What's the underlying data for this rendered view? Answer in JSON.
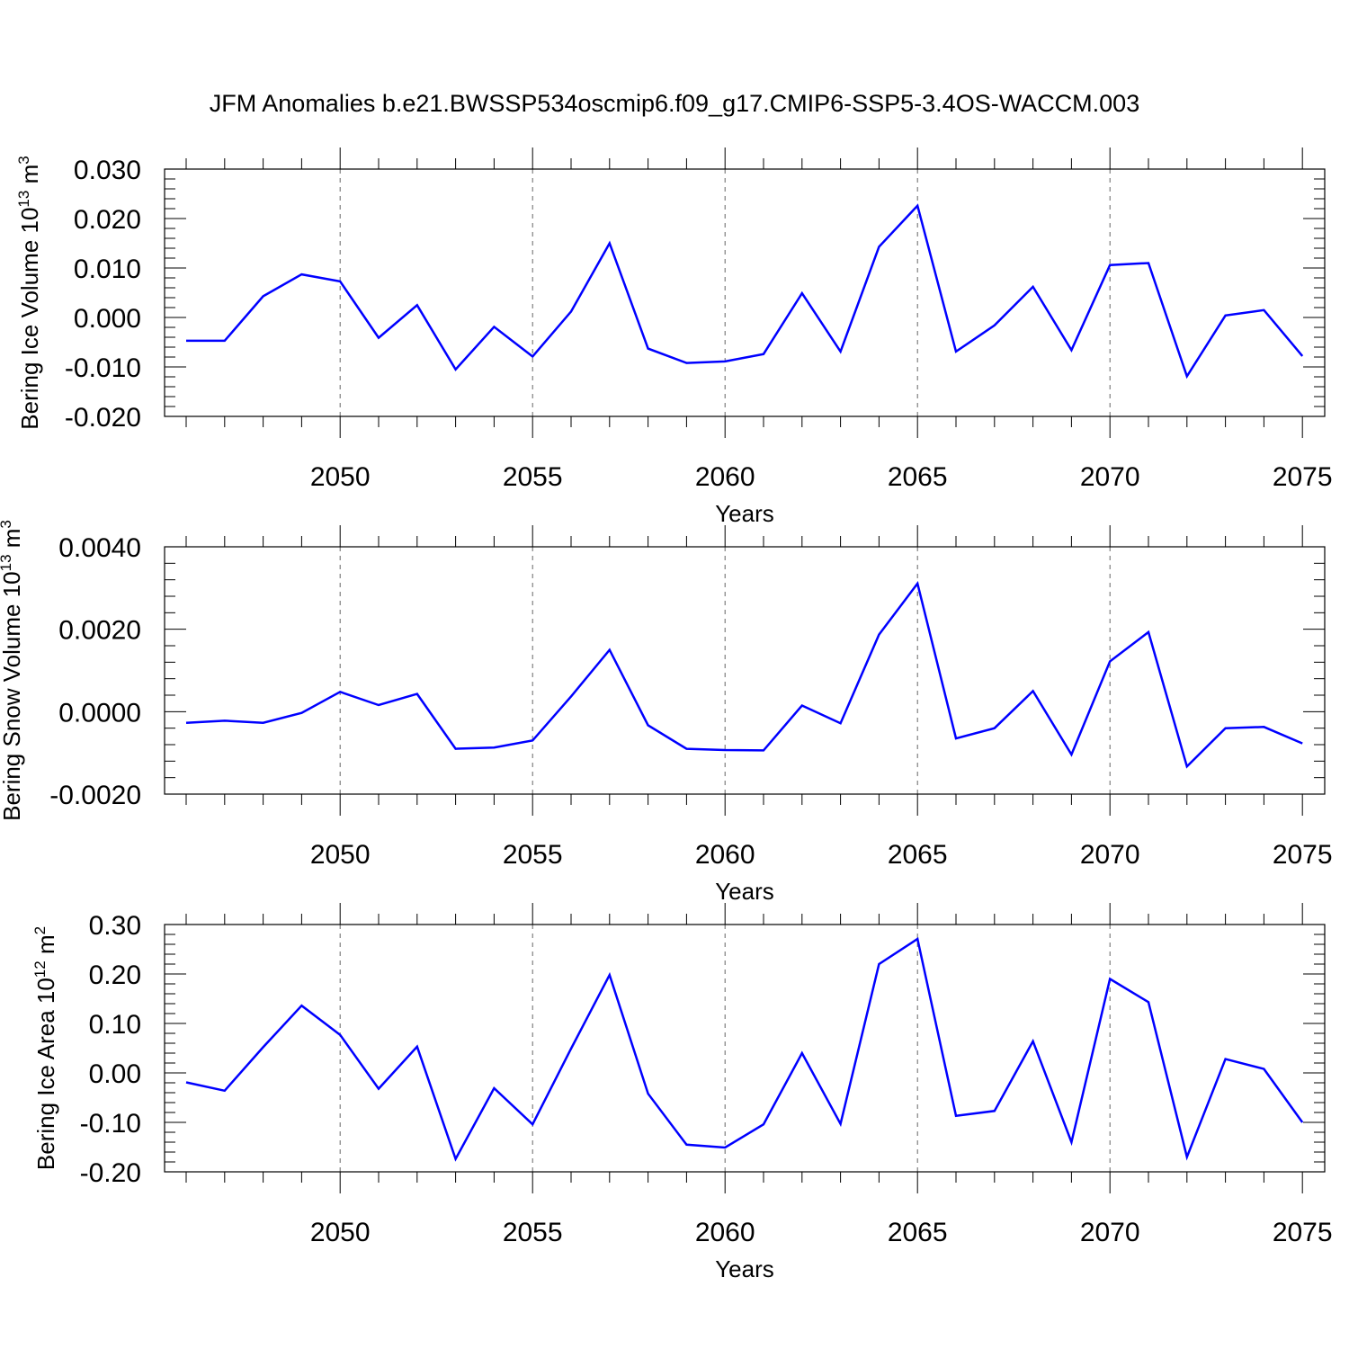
{
  "figure": {
    "title": "JFM Anomalies b.e21.BWSSP534oscmip6.f09_g17.CMIP6-SSP5-3.4OS-WACCM.003"
  },
  "chart_data": [
    {
      "type": "line",
      "title": "",
      "xlabel": "Years",
      "ylabel": "Bering Ice Volume 10",
      "ylabel_exp": "13",
      "ylabel_unit": " m",
      "ylabel_unit_exp": "3",
      "xlim": [
        2046,
        2075
      ],
      "ylim": [
        -0.02,
        0.03
      ],
      "x_ticks": [
        2050,
        2055,
        2060,
        2065,
        2070,
        2075
      ],
      "y_ticks": [
        -0.02,
        -0.01,
        0.0,
        0.01,
        0.02,
        0.03
      ],
      "y_tick_labels": [
        "-0.020",
        "-0.010",
        "0.000",
        "0.010",
        "0.020",
        "0.030"
      ],
      "grid": "vertical dashed at major x ticks",
      "series": [
        {
          "color": "#0000ff",
          "x": [
            2046,
            2047,
            2048,
            2049,
            2050,
            2051,
            2052,
            2053,
            2054,
            2055,
            2056,
            2057,
            2058,
            2059,
            2060,
            2061,
            2062,
            2063,
            2064,
            2065,
            2066,
            2067,
            2068,
            2069,
            2070,
            2071,
            2072,
            2073,
            2074,
            2075
          ],
          "y": [
            -0.0047,
            -0.0047,
            0.0043,
            0.0087,
            0.0073,
            -0.0041,
            0.0025,
            -0.0105,
            -0.0019,
            -0.0079,
            0.0012,
            0.015,
            -0.0063,
            -0.0092,
            -0.0089,
            -0.0074,
            0.0049,
            -0.0069,
            0.0143,
            0.0226,
            -0.0069,
            -0.0016,
            0.0062,
            -0.0066,
            0.0106,
            0.011,
            -0.0119,
            0.0004,
            0.0015,
            -0.0078
          ]
        }
      ]
    },
    {
      "type": "line",
      "title": "",
      "xlabel": "Years",
      "ylabel": "Bering Snow Volume 10",
      "ylabel_exp": "13",
      "ylabel_unit": " m",
      "ylabel_unit_exp": "3",
      "xlim": [
        2046,
        2075
      ],
      "ylim": [
        -0.002,
        0.004
      ],
      "x_ticks": [
        2050,
        2055,
        2060,
        2065,
        2070,
        2075
      ],
      "y_ticks": [
        -0.002,
        0.0,
        0.002,
        0.004
      ],
      "y_tick_labels": [
        "-0.0020",
        "0.0000",
        "0.0020",
        "0.0040"
      ],
      "grid": "vertical dashed at major x ticks",
      "series": [
        {
          "color": "#0000ff",
          "x": [
            2046,
            2047,
            2048,
            2049,
            2050,
            2051,
            2052,
            2053,
            2054,
            2055,
            2056,
            2057,
            2058,
            2059,
            2060,
            2061,
            2062,
            2063,
            2064,
            2065,
            2066,
            2067,
            2068,
            2069,
            2070,
            2071,
            2072,
            2073,
            2074,
            2075
          ],
          "y": [
            -0.00027,
            -0.00022,
            -0.00027,
            -3e-05,
            0.00048,
            0.00016,
            0.00043,
            -0.0009,
            -0.00087,
            -0.0007,
            0.00037,
            0.0015,
            -0.00033,
            -0.0009,
            -0.00093,
            -0.00094,
            0.00015,
            -0.00028,
            0.00187,
            0.00311,
            -0.00065,
            -0.0004,
            0.0005,
            -0.00104,
            0.00122,
            0.00193,
            -0.00133,
            -0.0004,
            -0.00037,
            -0.00077
          ]
        }
      ]
    },
    {
      "type": "line",
      "title": "",
      "xlabel": "Years",
      "ylabel": "Bering Ice Area 10",
      "ylabel_exp": "12",
      "ylabel_unit": " m",
      "ylabel_unit_exp": "2",
      "xlim": [
        2046,
        2075
      ],
      "ylim": [
        -0.2,
        0.3
      ],
      "x_ticks": [
        2050,
        2055,
        2060,
        2065,
        2070,
        2075
      ],
      "y_ticks": [
        -0.2,
        -0.1,
        0.0,
        0.1,
        0.2,
        0.3
      ],
      "y_tick_labels": [
        "-0.20",
        "-0.10",
        "0.00",
        "0.10",
        "0.20",
        "0.30"
      ],
      "grid": "vertical dashed at major x ticks",
      "series": [
        {
          "color": "#0000ff",
          "x": [
            2046,
            2047,
            2048,
            2049,
            2050,
            2051,
            2052,
            2053,
            2054,
            2055,
            2056,
            2057,
            2058,
            2059,
            2060,
            2061,
            2062,
            2063,
            2064,
            2065,
            2066,
            2067,
            2068,
            2069,
            2070,
            2071,
            2072,
            2073,
            2074,
            2075
          ],
          "y": [
            -0.019,
            -0.036,
            0.052,
            0.136,
            0.077,
            -0.032,
            0.053,
            -0.174,
            -0.031,
            -0.104,
            0.049,
            0.198,
            -0.042,
            -0.145,
            -0.151,
            -0.104,
            0.04,
            -0.103,
            0.22,
            0.271,
            -0.087,
            -0.077,
            0.064,
            -0.14,
            0.19,
            0.143,
            -0.17,
            0.028,
            0.008,
            -0.1
          ]
        }
      ]
    }
  ]
}
